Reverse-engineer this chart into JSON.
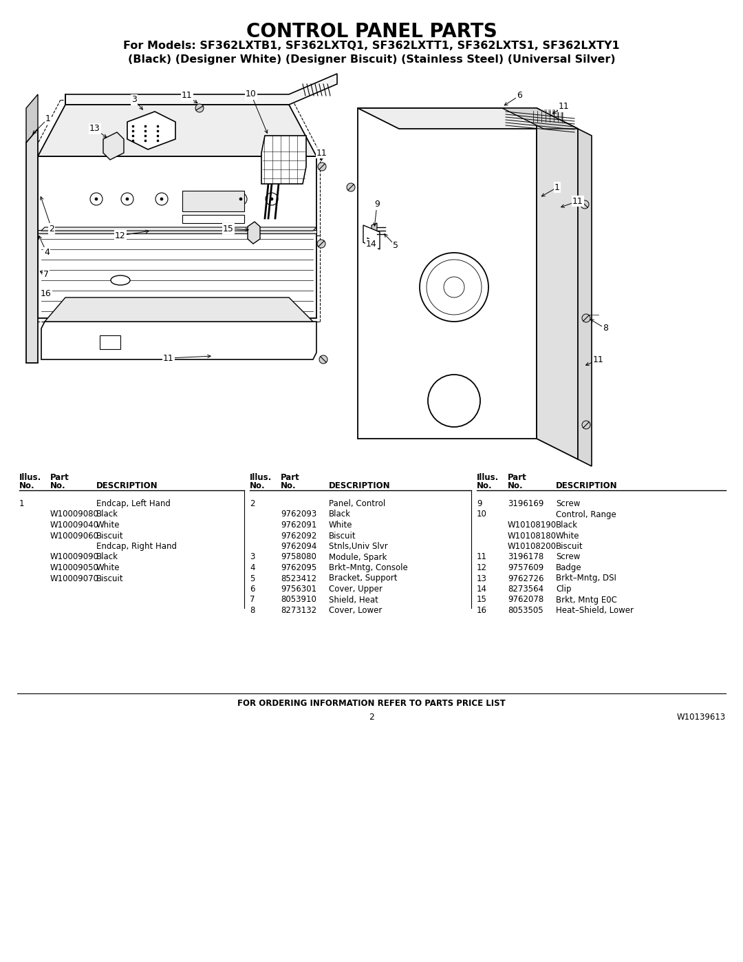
{
  "title": "CONTROL PANEL PARTS",
  "subtitle1": "For Models: SF362LXTB1, SF362LXTQ1, SF362LXTT1, SF362LXTS1, SF362LXTY1",
  "subtitle2": "(Black) (Designer White) (Designer Biscuit) (Stainless Steel) (Universal Silver)",
  "bg_color": "#ffffff",
  "title_fontsize": 20,
  "subtitle_fontsize": 11.5,
  "col1_data": [
    [
      "1",
      "",
      "Endcap, Left Hand"
    ],
    [
      "",
      "W10009080",
      "Black"
    ],
    [
      "",
      "W10009040",
      "White"
    ],
    [
      "",
      "W10009060",
      "Biscuit"
    ],
    [
      "",
      "",
      "Endcap, Right Hand"
    ],
    [
      "",
      "W10009090",
      "Black"
    ],
    [
      "",
      "W10009050",
      "White"
    ],
    [
      "",
      "W10009070",
      "Biscuit"
    ]
  ],
  "col2_data": [
    [
      "2",
      "",
      "Panel, Control"
    ],
    [
      "",
      "9762093",
      "Black"
    ],
    [
      "",
      "9762091",
      "White"
    ],
    [
      "",
      "9762092",
      "Biscuit"
    ],
    [
      "",
      "9762094",
      "Stnls,Univ Slvr"
    ],
    [
      "3",
      "9758080",
      "Module, Spark"
    ],
    [
      "4",
      "9762095",
      "Brkt–Mntg, Console"
    ],
    [
      "5",
      "8523412",
      "Bracket, Support"
    ],
    [
      "6",
      "9756301",
      "Cover, Upper"
    ],
    [
      "7",
      "8053910",
      "Shield, Heat"
    ],
    [
      "8",
      "8273132",
      "Cover, Lower"
    ]
  ],
  "col3_data": [
    [
      "9",
      "3196169",
      "Screw"
    ],
    [
      "10",
      "",
      "Control, Range"
    ],
    [
      "",
      "W10108190",
      "Black"
    ],
    [
      "",
      "W10108180",
      "White"
    ],
    [
      "",
      "W10108200",
      "Biscuit"
    ],
    [
      "11",
      "3196178",
      "Screw"
    ],
    [
      "12",
      "9757609",
      "Badge"
    ],
    [
      "13",
      "9762726",
      "Brkt–Mntg, DSI"
    ],
    [
      "14",
      "8273564",
      "Clip"
    ],
    [
      "15",
      "9762078",
      "Brkt, Mntg E0C"
    ],
    [
      "16",
      "8053505",
      "Heat–Shield, Lower"
    ]
  ],
  "footer_bold": "FOR ORDERING INFORMATION REFER TO PARTS PRICE LIST",
  "page_number": "2",
  "doc_number": "W10139613"
}
